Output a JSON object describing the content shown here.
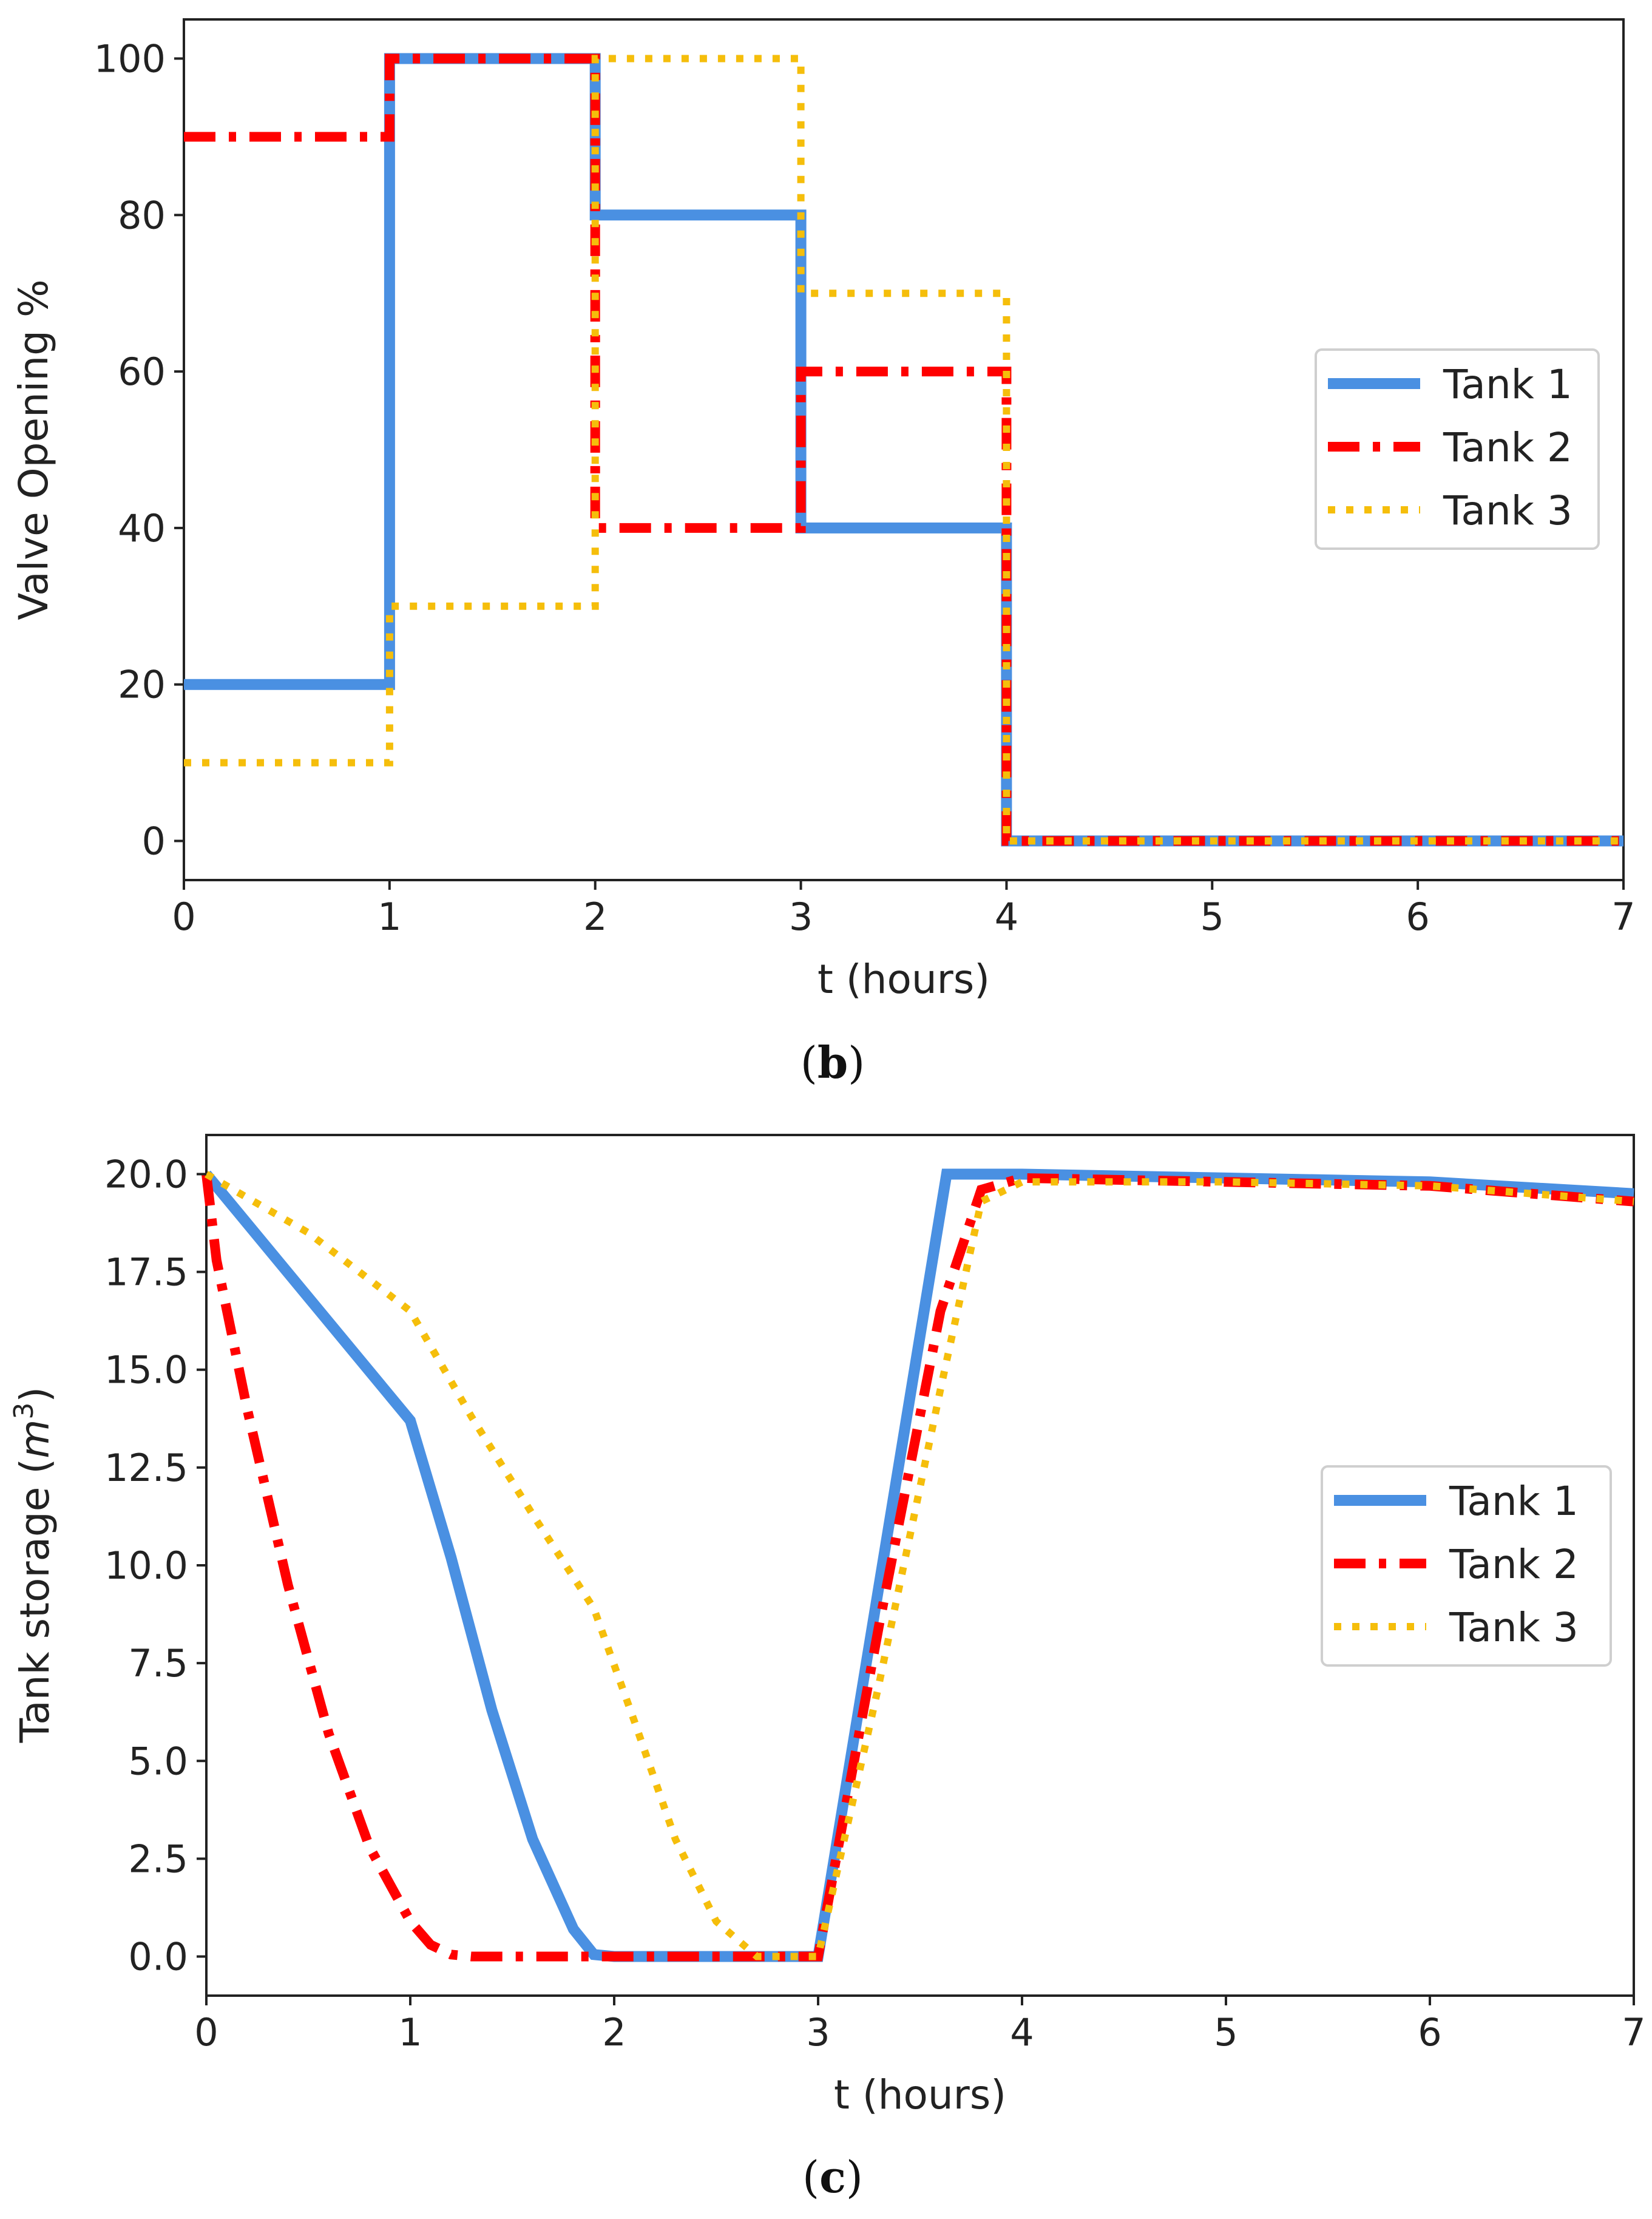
{
  "colors": {
    "tank1": "#4a90e2",
    "tank2": "#ff0000",
    "tank3": "#f5be0b",
    "axis": "#222222"
  },
  "chart_data": [
    {
      "id": "b",
      "type": "line",
      "caption_letter": "b",
      "title": "",
      "xlabel": "t (hours)",
      "ylabel": "Valve Opening %",
      "xlim": [
        0,
        7
      ],
      "ylim": [
        -5,
        105
      ],
      "xticks": [
        0,
        1,
        2,
        3,
        4,
        5,
        6,
        7
      ],
      "xtick_labels": [
        "0",
        "1",
        "2",
        "3",
        "4",
        "5",
        "6",
        "7"
      ],
      "yticks": [
        0,
        20,
        40,
        60,
        80,
        100
      ],
      "ytick_labels": [
        "0",
        "20",
        "40",
        "60",
        "80",
        "100"
      ],
      "legend": {
        "position": "center-right",
        "entries": [
          "Tank 1",
          "Tank 2",
          "Tank 3"
        ]
      },
      "series": [
        {
          "name": "Tank 1",
          "style": "solid",
          "color_key": "tank1",
          "x": [
            0,
            1,
            1,
            2,
            2,
            3,
            3,
            4,
            4,
            7
          ],
          "y": [
            20,
            20,
            100,
            100,
            80,
            80,
            40,
            40,
            0,
            0
          ]
        },
        {
          "name": "Tank 2",
          "style": "dashdot",
          "color_key": "tank2",
          "x": [
            0,
            1,
            1,
            2,
            2,
            3,
            3,
            4,
            4,
            7
          ],
          "y": [
            90,
            90,
            100,
            100,
            40,
            40,
            60,
            60,
            0,
            0
          ]
        },
        {
          "name": "Tank 3",
          "style": "dotted",
          "color_key": "tank3",
          "x": [
            0,
            1,
            1,
            2,
            2,
            3,
            3,
            4,
            4,
            7
          ],
          "y": [
            10,
            10,
            30,
            30,
            100,
            100,
            70,
            70,
            0,
            0
          ]
        }
      ]
    },
    {
      "id": "c",
      "type": "line",
      "caption_letter": "c",
      "title": "",
      "xlabel": "t (hours)",
      "ylabel_main": "Tank storage (",
      "ylabel_var": "m",
      "ylabel_sup": "3",
      "ylabel_end": ")",
      "xlim": [
        0,
        7
      ],
      "ylim": [
        -1,
        21
      ],
      "xticks": [
        0,
        1,
        2,
        3,
        4,
        5,
        6,
        7
      ],
      "xtick_labels": [
        "0",
        "1",
        "2",
        "3",
        "4",
        "5",
        "6",
        "7"
      ],
      "yticks": [
        0,
        2.5,
        5,
        7.5,
        10,
        12.5,
        15,
        17.5,
        20
      ],
      "ytick_labels": [
        "0.0",
        "2.5",
        "5.0",
        "7.5",
        "10.0",
        "12.5",
        "15.0",
        "17.5",
        "20.0"
      ],
      "legend": {
        "position": "center-right",
        "entries": [
          "Tank 1",
          "Tank 2",
          "Tank 3"
        ]
      },
      "series": [
        {
          "name": "Tank 1",
          "style": "solid",
          "color_key": "tank1",
          "x": [
            0,
            1,
            1.2,
            1.4,
            1.6,
            1.8,
            1.9,
            2.0,
            3.0,
            3.63,
            4.0,
            5.0,
            6.0,
            7.0
          ],
          "y": [
            20,
            13.7,
            10.2,
            6.3,
            3.0,
            0.7,
            0.05,
            0,
            0,
            20,
            20,
            19.9,
            19.8,
            19.5
          ]
        },
        {
          "name": "Tank 2",
          "style": "dashdot",
          "color_key": "tank2",
          "x": [
            0,
            0.05,
            0.2,
            0.4,
            0.6,
            0.8,
            1.0,
            1.1,
            1.2,
            1.3,
            2.0,
            3.0,
            3.3,
            3.6,
            3.8,
            4.0,
            5.0,
            6.0,
            7.0
          ],
          "y": [
            20,
            17.8,
            14.0,
            9.5,
            5.7,
            2.8,
            0.9,
            0.3,
            0.05,
            0,
            0,
            0,
            8.5,
            16.5,
            19.6,
            19.9,
            19.8,
            19.7,
            19.3
          ]
        },
        {
          "name": "Tank 3",
          "style": "dotted",
          "color_key": "tank3",
          "x": [
            0,
            0.5,
            1.0,
            1.3,
            1.6,
            1.9,
            2.1,
            2.3,
            2.5,
            2.7,
            3.0,
            3.3,
            3.6,
            3.8,
            4.0,
            5.0,
            6.0,
            7.0
          ],
          "y": [
            20,
            18.5,
            16.5,
            13.8,
            11.3,
            8.9,
            6.0,
            3.0,
            0.9,
            0,
            0,
            7.0,
            14.5,
            19.3,
            19.8,
            19.8,
            19.7,
            19.3
          ]
        }
      ]
    }
  ]
}
